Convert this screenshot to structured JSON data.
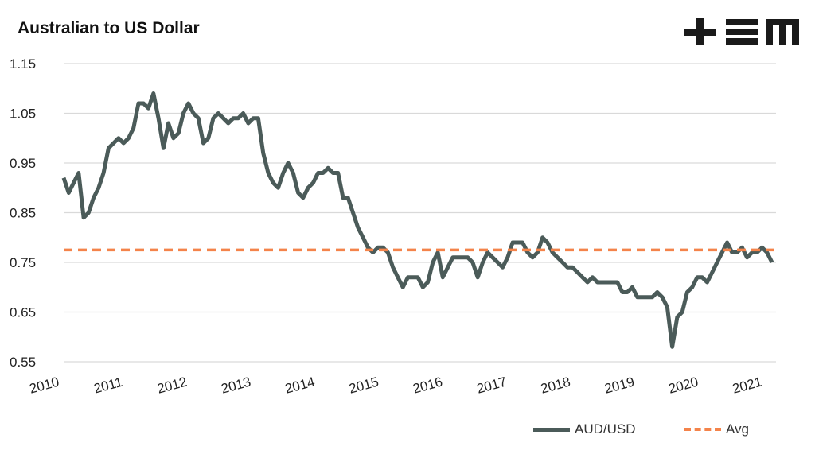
{
  "chart_data": {
    "type": "line",
    "title": "Australian to US Dollar",
    "logo_text": "+EM",
    "xlabel": "",
    "ylabel": "",
    "ylim": [
      0.55,
      1.15
    ],
    "xlim": [
      2010.0,
      2021.9
    ],
    "yticks": [
      "0.55",
      "0.65",
      "0.75",
      "0.85",
      "0.95",
      "1.05",
      "1.15"
    ],
    "xticks": [
      "2010",
      "2011",
      "2012",
      "2013",
      "2014",
      "2015",
      "2016",
      "2017",
      "2018",
      "2019",
      "2020",
      "2021"
    ],
    "grid": true,
    "legend_position": "bottom-right",
    "colors": {
      "aud": "#4b5b59",
      "avg": "#f4834a"
    },
    "series": [
      {
        "name": "AUD/USD",
        "start": 2010.0,
        "step": "monthly",
        "values": [
          0.92,
          0.89,
          0.91,
          0.93,
          0.84,
          0.85,
          0.88,
          0.9,
          0.93,
          0.98,
          0.99,
          1.0,
          0.99,
          1.0,
          1.02,
          1.07,
          1.07,
          1.06,
          1.09,
          1.04,
          0.98,
          1.03,
          1.0,
          1.01,
          1.05,
          1.07,
          1.05,
          1.04,
          0.99,
          1.0,
          1.04,
          1.05,
          1.04,
          1.03,
          1.04,
          1.04,
          1.05,
          1.03,
          1.04,
          1.04,
          0.97,
          0.93,
          0.91,
          0.9,
          0.93,
          0.95,
          0.93,
          0.89,
          0.88,
          0.9,
          0.91,
          0.93,
          0.93,
          0.94,
          0.93,
          0.93,
          0.88,
          0.88,
          0.85,
          0.82,
          0.8,
          0.78,
          0.77,
          0.78,
          0.78,
          0.77,
          0.74,
          0.72,
          0.7,
          0.72,
          0.72,
          0.72,
          0.7,
          0.71,
          0.75,
          0.77,
          0.72,
          0.74,
          0.76,
          0.76,
          0.76,
          0.76,
          0.75,
          0.72,
          0.75,
          0.77,
          0.76,
          0.75,
          0.74,
          0.76,
          0.79,
          0.79,
          0.79,
          0.77,
          0.76,
          0.77,
          0.8,
          0.79,
          0.77,
          0.76,
          0.75,
          0.74,
          0.74,
          0.73,
          0.72,
          0.71,
          0.72,
          0.71,
          0.71,
          0.71,
          0.71,
          0.71,
          0.69,
          0.69,
          0.7,
          0.68,
          0.68,
          0.68,
          0.68,
          0.69,
          0.68,
          0.66,
          0.58,
          0.64,
          0.65,
          0.69,
          0.7,
          0.72,
          0.72,
          0.71,
          0.73,
          0.75,
          0.77,
          0.79,
          0.77,
          0.77,
          0.78,
          0.76,
          0.77,
          0.77,
          0.78,
          0.77,
          0.75
        ]
      },
      {
        "name": "Avg",
        "value": 0.775
      }
    ]
  }
}
